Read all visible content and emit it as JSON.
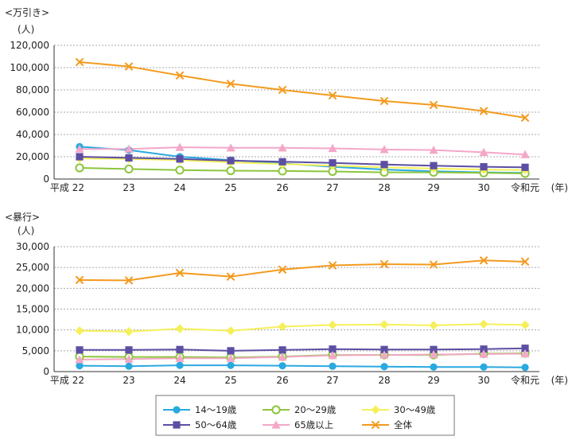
{
  "legend": [
    {
      "name": "14〜19歳",
      "color": "#29a9e0",
      "marker": "circle"
    },
    {
      "name": "20〜29歳",
      "color": "#8cc63e",
      "marker": "circle-open"
    },
    {
      "name": "30〜49歳",
      "color": "#f5f05a",
      "marker": "diamond"
    },
    {
      "name": "50〜64歳",
      "color": "#5c4fa3",
      "marker": "square"
    },
    {
      "name": "65歳以上",
      "color": "#f4a7c8",
      "marker": "triangle"
    },
    {
      "name": "全体",
      "color": "#f39a1e",
      "marker": "cross"
    }
  ],
  "chart_data": [
    {
      "type": "line",
      "title": "<万引き>",
      "ylabel": "(人)",
      "xunit": "(年)",
      "ylim": [
        0,
        120000
      ],
      "yticks": [
        0,
        20000,
        40000,
        60000,
        80000,
        100000,
        120000
      ],
      "ytick_labels": [
        "0",
        "20,000",
        "40,000",
        "60,000",
        "80,000",
        "100,000",
        "120,000"
      ],
      "categories": [
        "平成 22",
        "23",
        "24",
        "25",
        "26",
        "27",
        "28",
        "29",
        "30",
        "令和元"
      ],
      "series": [
        {
          "name": "14〜19歳",
          "values": [
            29000,
            26000,
            20000,
            17000,
            14000,
            11000,
            8500,
            7000,
            6000,
            5500
          ]
        },
        {
          "name": "20〜29歳",
          "values": [
            10000,
            9000,
            8000,
            7500,
            7200,
            6800,
            6000,
            6000,
            5500,
            5000
          ]
        },
        {
          "name": "30〜49歳",
          "values": [
            18500,
            18000,
            17000,
            15000,
            13500,
            12000,
            10500,
            9500,
            8500,
            8000
          ]
        },
        {
          "name": "50〜64歳",
          "values": [
            20000,
            19000,
            18000,
            16500,
            15500,
            14500,
            13000,
            12000,
            11000,
            10500
          ]
        },
        {
          "name": "65歳以上",
          "values": [
            27000,
            27000,
            28500,
            28000,
            28000,
            27500,
            26500,
            26000,
            24000,
            22000
          ]
        },
        {
          "name": "全体",
          "values": [
            105000,
            101000,
            93000,
            85500,
            80000,
            75000,
            70000,
            66500,
            61000,
            55000
          ]
        }
      ]
    },
    {
      "type": "line",
      "title": "<暴行>",
      "ylabel": "(人)",
      "xunit": "(年)",
      "ylim": [
        0,
        30000
      ],
      "yticks": [
        0,
        5000,
        10000,
        15000,
        20000,
        25000,
        30000
      ],
      "ytick_labels": [
        "0",
        "5,000",
        "10,000",
        "15,000",
        "20,000",
        "25,000",
        "30,000"
      ],
      "categories": [
        "平成 22",
        "23",
        "24",
        "25",
        "26",
        "27",
        "28",
        "29",
        "30",
        "令和元"
      ],
      "series": [
        {
          "name": "14〜19歳",
          "values": [
            1400,
            1300,
            1500,
            1500,
            1400,
            1300,
            1200,
            1100,
            1100,
            1000
          ]
        },
        {
          "name": "20〜29歳",
          "values": [
            3600,
            3500,
            3500,
            3400,
            3600,
            4000,
            4000,
            4000,
            4300,
            4400
          ]
        },
        {
          "name": "30〜49歳",
          "values": [
            9800,
            9600,
            10300,
            9800,
            10800,
            11200,
            11300,
            11100,
            11400,
            11200
          ]
        },
        {
          "name": "50〜64歳",
          "values": [
            5200,
            5200,
            5300,
            5000,
            5200,
            5400,
            5300,
            5300,
            5400,
            5600
          ]
        },
        {
          "name": "65歳以上",
          "values": [
            2900,
            3000,
            3200,
            3200,
            3500,
            3900,
            4000,
            4100,
            4200,
            4300
          ]
        },
        {
          "name": "全体",
          "values": [
            22000,
            21900,
            23700,
            22800,
            24500,
            25500,
            25800,
            25700,
            26700,
            26400
          ]
        }
      ]
    }
  ]
}
